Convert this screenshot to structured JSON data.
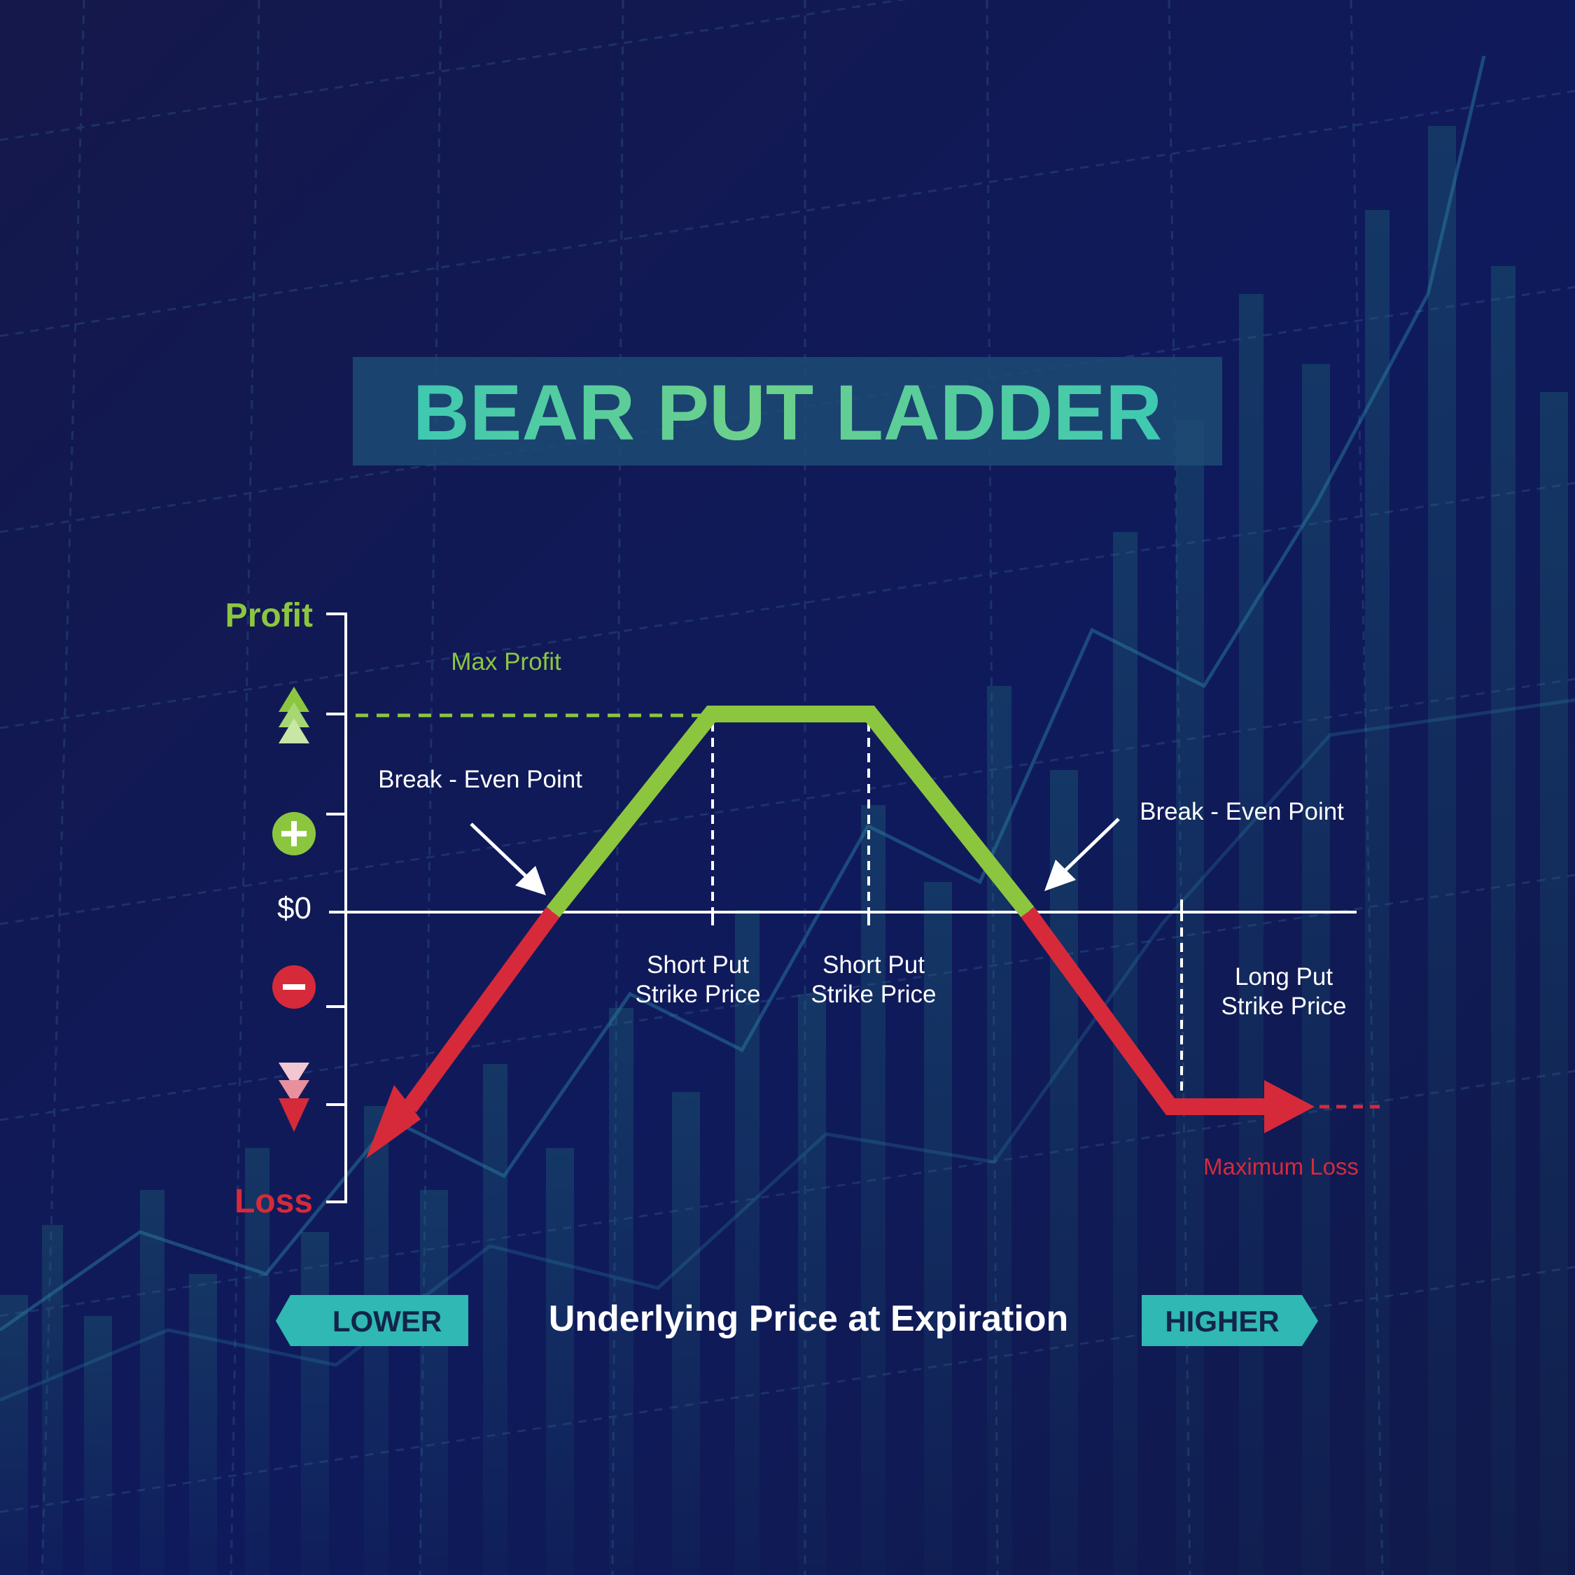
{
  "title": "BEAR PUT LADDER",
  "y_axis": {
    "top_label": "Profit",
    "bottom_label": "Loss",
    "zero_label": "$0"
  },
  "x_axis": {
    "left_label": "LOWER",
    "center_label": "Underlying Price at Expiration",
    "right_label": "HIGHER"
  },
  "annotations": {
    "max_profit": "Max Profit",
    "break_even_left": "Break - Even Point",
    "break_even_right": "Break - Even Point",
    "maximum_loss": "Maximum Loss",
    "strike_1_line1": "Short Put",
    "strike_1_line2": "Strike Price",
    "strike_2_line1": "Short Put",
    "strike_2_line2": "Strike Price",
    "strike_3_line1": "Long Put",
    "strike_3_line2": "Strike Price"
  },
  "colors": {
    "background": "#0f1548",
    "title": "#3ec9b2",
    "title_box": "#1d4b74",
    "profit": "#8cc63f",
    "loss": "#d62a3b",
    "axis": "#ffffff",
    "label_teal": "#2fb8b4",
    "label_dark": "#13244a"
  },
  "icons": {
    "plus": "plus-circle-icon",
    "minus": "minus-circle-icon",
    "up": "triangle-up-stack-icon",
    "down": "triangle-down-stack-icon"
  }
}
